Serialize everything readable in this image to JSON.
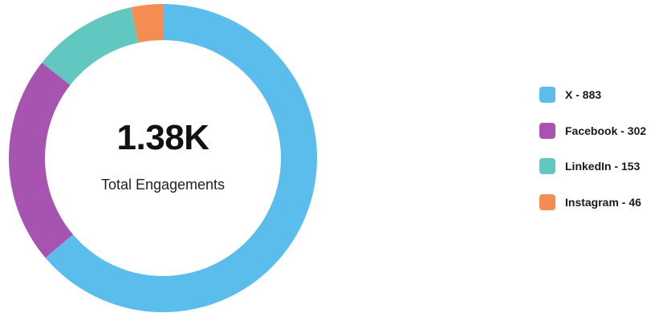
{
  "chart_data": {
    "type": "pie",
    "variant": "donut",
    "title": "",
    "center": {
      "value": "1.38K",
      "label": "Total Engagements"
    },
    "categories": [
      "X",
      "Facebook",
      "LinkedIn",
      "Instagram"
    ],
    "values": [
      883,
      302,
      153,
      46
    ],
    "colors": [
      "#5BBDEB",
      "#A654AF",
      "#62C7C0",
      "#F58C52"
    ],
    "legend_labels": [
      "X - 883",
      "Facebook - 302",
      "LinkedIn - 153",
      "Instagram - 46"
    ],
    "legend_position": "right"
  }
}
